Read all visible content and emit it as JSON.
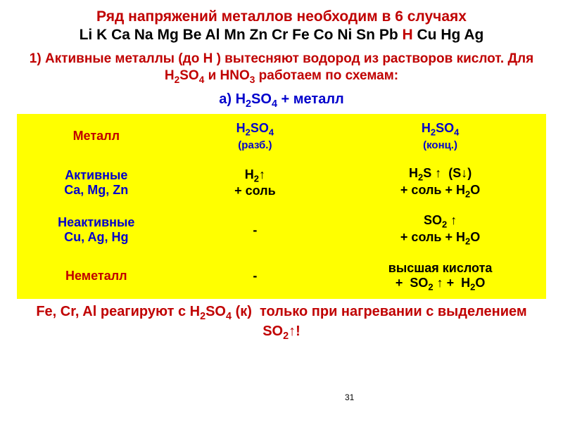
{
  "header": {
    "line1": "Ряд напряжений металлов необходим в 6 случаях",
    "line2_prefix": "Li K Ca Na Mg Be Al Mn Zn Cr Fe Co Ni Sn Pb ",
    "line2_H": "H",
    "line2_suffix": " Cu Hg Ag"
  },
  "note_html": "1) Активные металлы (до Н ) вытесняют водород из растворов кислот. Для H<sub>2</sub>SO<sub>4</sub> и HNO<sub>3</sub> работаем по схемам:",
  "subtitle_html": "а) H<sub>2</sub>SO<sub>4</sub> + металл",
  "table": {
    "background_color": "#ffff00",
    "header_color": "#0000cc",
    "columns": [
      {
        "label": "Металл",
        "sub": ""
      },
      {
        "label_html": "H<sub>2</sub>SO<sub>4</sub>",
        "sub": "(разб.)"
      },
      {
        "label_html": "H<sub>2</sub>SO<sub>4</sub>",
        "sub": "(конц.)"
      }
    ],
    "rows": [
      {
        "label_html": "Активные<br>Ca, Mg, Zn",
        "label_color": "#0000cc",
        "c1_html": "H<sub>2</sub>↑<br>+ соль",
        "c2_html": "H<sub>2</sub>S ↑&nbsp;&nbsp;(S↓)<br>+ соль + H<sub>2</sub>O"
      },
      {
        "label_html": "Неактивные<br>Cu, Ag, Hg",
        "label_color": "#0000cc",
        "c1_html": "-",
        "c2_html": "SO<sub>2</sub> ↑<br>+ соль + H<sub>2</sub>O"
      },
      {
        "label_html": "Неметалл",
        "label_color": "#c00000",
        "c1_html": "-",
        "c2_html": "высшая кислота<br>+&nbsp;&nbsp;SO<sub>2</sub> ↑ +&nbsp;&nbsp;H<sub>2</sub>O"
      }
    ]
  },
  "footer_html": "Fe, Cr, Al реагируют с H<sub>2</sub>SO<sub>4</sub> (к)&nbsp;&nbsp;только при нагревании с выделением SO<sub>2</sub>↑!",
  "page_num": "31",
  "colors": {
    "red": "#c00000",
    "blue": "#0000cc",
    "black": "#000000",
    "yellow": "#ffff00"
  },
  "fontsizes": {
    "title": 21,
    "note": 19,
    "sub": 20,
    "cell": 18,
    "foot": 20,
    "small": 15
  }
}
